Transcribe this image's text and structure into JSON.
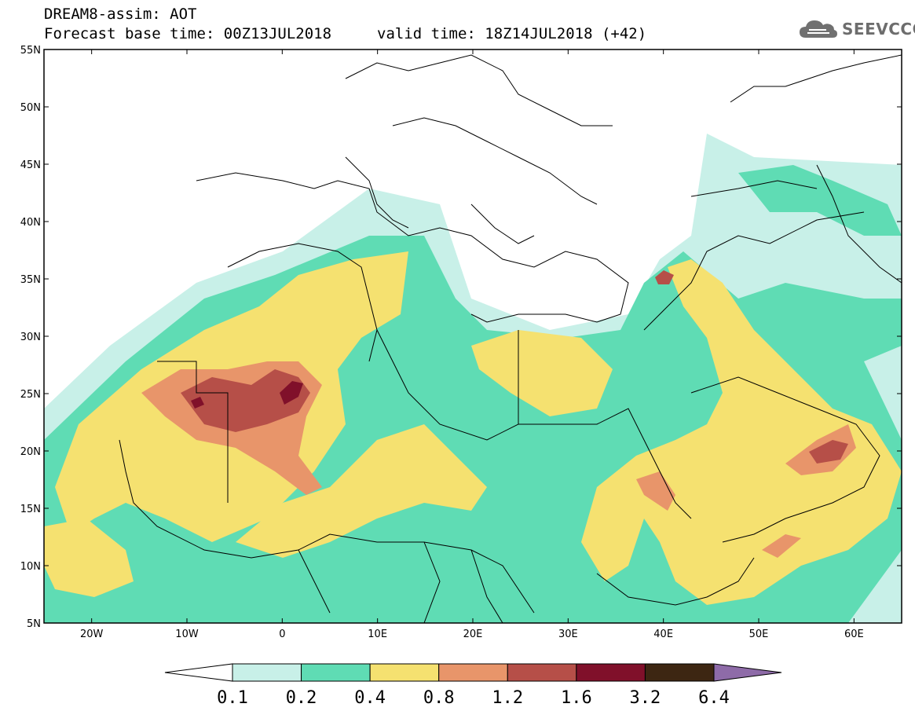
{
  "header": {
    "title_line1": "DREAM8-assim: AOT",
    "title_line2": "Forecast base time: 00Z13JUL2018",
    "valid_time": "valid time: 18Z14JUL2018 (+42)",
    "logo_text": "SEEVCCC",
    "logo_icon": "cloud-icon"
  },
  "map": {
    "lon_range": [
      -25,
      65
    ],
    "lat_range": [
      5,
      55
    ],
    "lat_labels": [
      "55N",
      "50N",
      "45N",
      "40N",
      "35N",
      "30N",
      "25N",
      "20N",
      "15N",
      "10N",
      "5N"
    ],
    "lon_labels": [
      "20W",
      "10W",
      "0",
      "10E",
      "20E",
      "30E",
      "40E",
      "50E",
      "60E"
    ],
    "lat_values": [
      55,
      50,
      45,
      40,
      35,
      30,
      25,
      20,
      15,
      10,
      5
    ],
    "lon_values": [
      -20,
      -10,
      0,
      10,
      20,
      30,
      40,
      50,
      60
    ]
  },
  "colorbar": {
    "labels": [
      "0.1",
      "0.2",
      "0.4",
      "0.8",
      "1.2",
      "1.6",
      "3.2",
      "6.4"
    ],
    "colors": [
      "#ffffff",
      "#c8f0e8",
      "#5fdcb4",
      "#f5e170",
      "#e8956a",
      "#b64f48",
      "#80102a",
      "#3d2612",
      "#8e6ba8"
    ]
  }
}
